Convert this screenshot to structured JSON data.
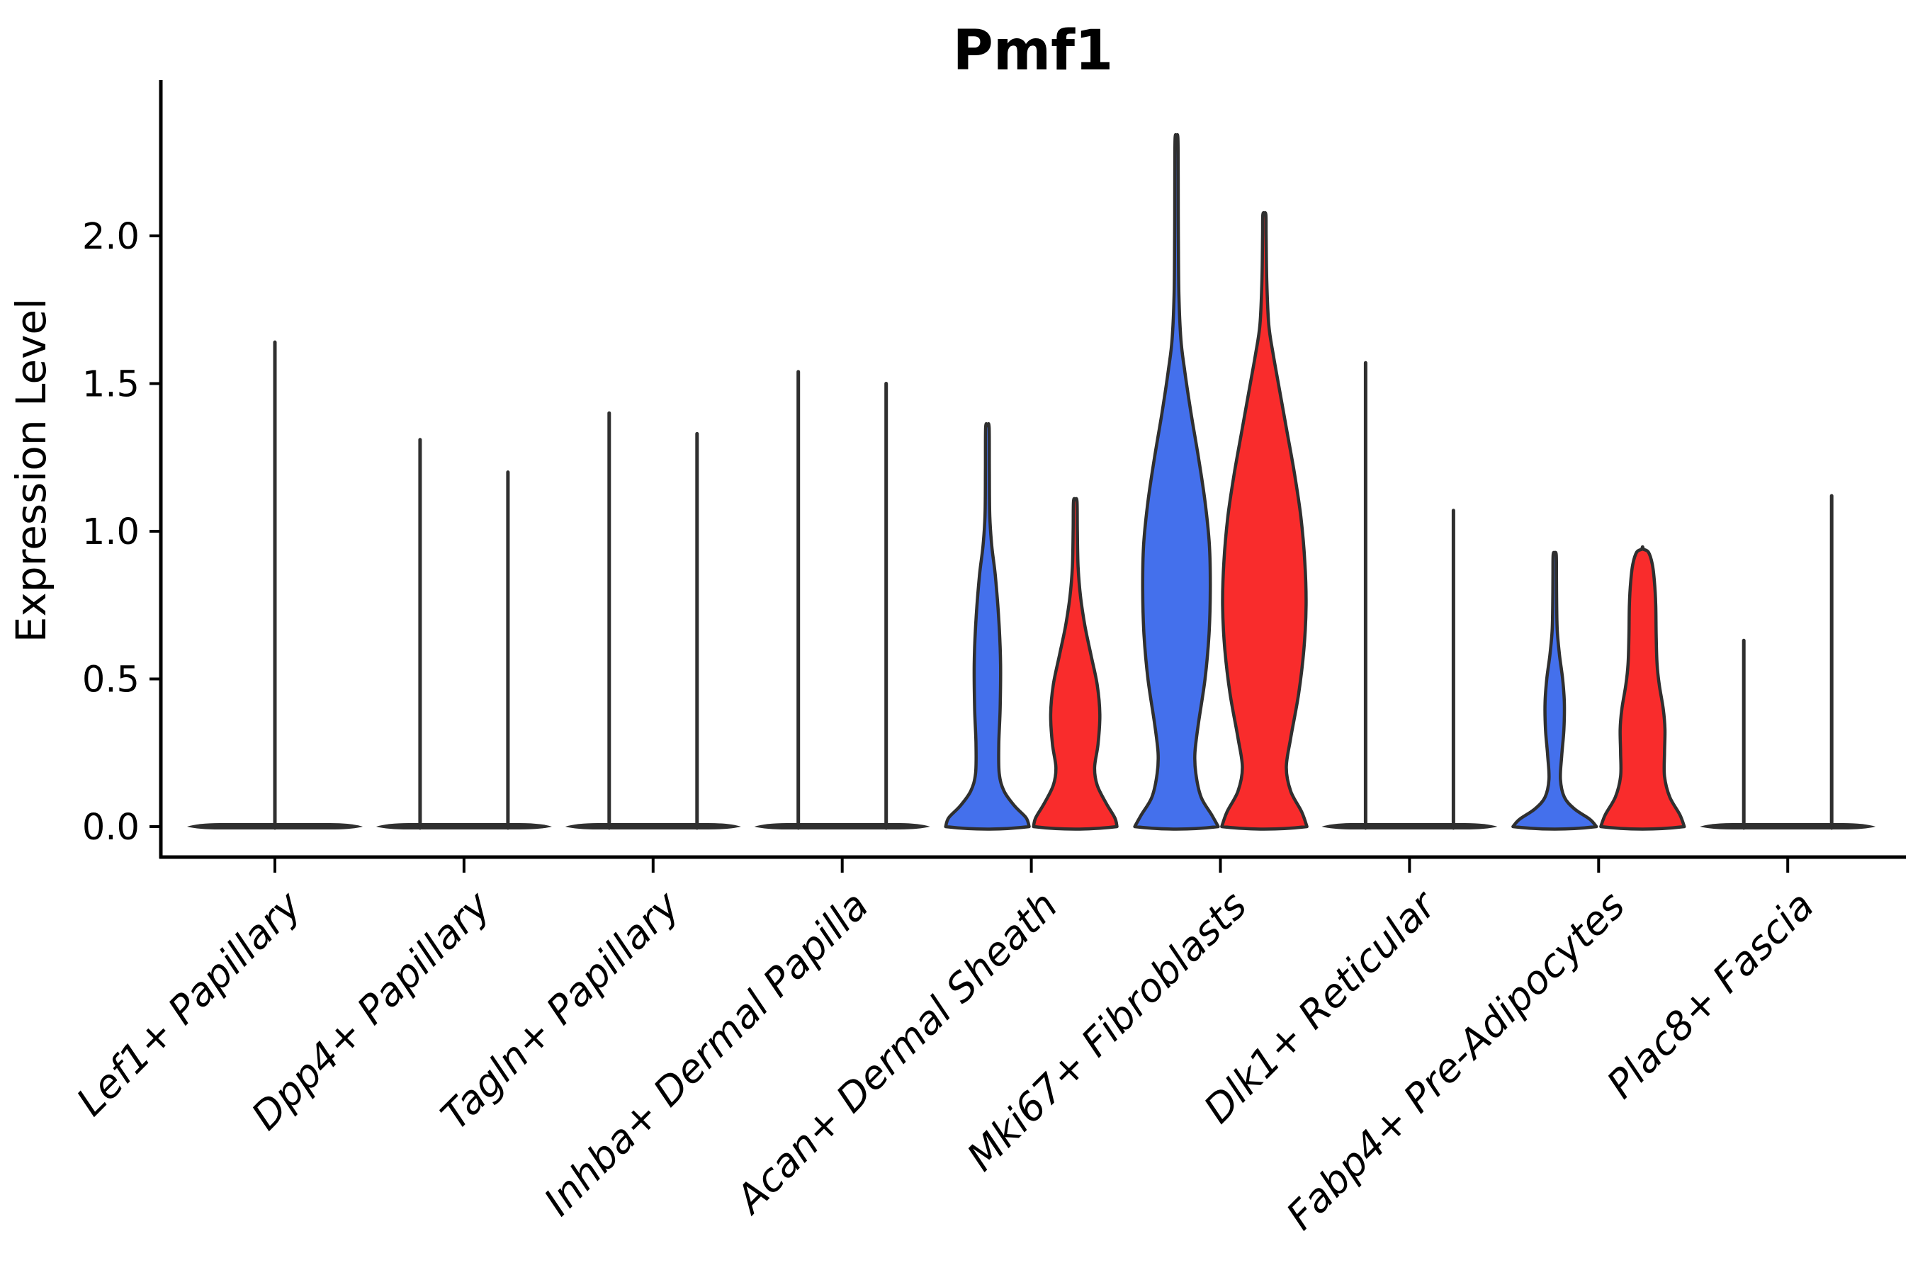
{
  "colors": {
    "background": "#FFFFFF",
    "blue": "#4470EC",
    "red": "#F92C2C",
    "outline": "#2F2F2F",
    "axis": "#000000",
    "text": "#000000"
  },
  "chart_data": {
    "type": "violin",
    "title": "Pmf1",
    "ylabel": "Expression Level",
    "xlabel": "",
    "yticks": [
      "0.0",
      "0.5",
      "1.0",
      "1.5",
      "2.0"
    ],
    "ytick_values": [
      0.0,
      0.5,
      1.0,
      1.5,
      2.0
    ],
    "ylim": [
      -0.07,
      2.45
    ],
    "grid": false,
    "legend": "none",
    "split_palette": [
      "#4470EC",
      "#F92C2C"
    ],
    "categories": [
      {
        "label": "Lef1+ Papillary",
        "violins": [
          {
            "color": "outline",
            "style": "line",
            "span": "full",
            "max": 1.64
          }
        ]
      },
      {
        "label": "Dpp4+ Papillary",
        "violins": [
          {
            "color": "blue",
            "style": "line",
            "span": "half",
            "max": 1.31
          },
          {
            "color": "red",
            "style": "line",
            "span": "half",
            "max": 1.2
          }
        ]
      },
      {
        "label": "Tagln+ Papillary",
        "violins": [
          {
            "color": "blue",
            "style": "line",
            "span": "half",
            "max": 1.4
          },
          {
            "color": "red",
            "style": "line",
            "span": "half",
            "max": 1.33
          }
        ]
      },
      {
        "label": "Inhba+ Dermal Papilla",
        "violins": [
          {
            "color": "blue",
            "style": "line",
            "span": "half",
            "max": 1.54
          },
          {
            "color": "red",
            "style": "line",
            "span": "half",
            "max": 1.5
          }
        ]
      },
      {
        "label": "Acan+ Dermal Sheath",
        "violins": [
          {
            "color": "blue",
            "style": "density",
            "span": "half",
            "max": 1.35,
            "profile": [
              [
                0,
                0.95
              ],
              [
                0.03,
                0.88
              ],
              [
                0.07,
                0.62
              ],
              [
                0.12,
                0.38
              ],
              [
                0.18,
                0.27
              ],
              [
                0.28,
                0.26
              ],
              [
                0.4,
                0.29
              ],
              [
                0.55,
                0.3
              ],
              [
                0.7,
                0.26
              ],
              [
                0.85,
                0.18
              ],
              [
                0.95,
                0.1
              ],
              [
                1.05,
                0.055
              ],
              [
                1.2,
                0.045
              ],
              [
                1.35,
                0.04
              ]
            ]
          },
          {
            "color": "red",
            "style": "density",
            "span": "half",
            "max": 1.1,
            "profile": [
              [
                0,
                0.95
              ],
              [
                0.03,
                0.9
              ],
              [
                0.08,
                0.7
              ],
              [
                0.14,
                0.5
              ],
              [
                0.2,
                0.44
              ],
              [
                0.28,
                0.52
              ],
              [
                0.38,
                0.56
              ],
              [
                0.48,
                0.5
              ],
              [
                0.58,
                0.36
              ],
              [
                0.68,
                0.22
              ],
              [
                0.78,
                0.12
              ],
              [
                0.88,
                0.065
              ],
              [
                1.0,
                0.048
              ],
              [
                1.1,
                0.04
              ]
            ]
          }
        ]
      },
      {
        "label": "Mki67+ Fibroblasts",
        "violins": [
          {
            "color": "blue",
            "style": "density",
            "span": "half",
            "max": 2.33,
            "profile": [
              [
                0,
                0.95
              ],
              [
                0.04,
                0.8
              ],
              [
                0.1,
                0.56
              ],
              [
                0.18,
                0.44
              ],
              [
                0.25,
                0.42
              ],
              [
                0.35,
                0.5
              ],
              [
                0.5,
                0.65
              ],
              [
                0.65,
                0.74
              ],
              [
                0.8,
                0.77
              ],
              [
                0.95,
                0.75
              ],
              [
                1.1,
                0.65
              ],
              [
                1.25,
                0.5
              ],
              [
                1.4,
                0.33
              ],
              [
                1.55,
                0.18
              ],
              [
                1.65,
                0.1
              ],
              [
                1.8,
                0.055
              ],
              [
                2.0,
                0.042
              ],
              [
                2.2,
                0.038
              ],
              [
                2.33,
                0.032
              ]
            ]
          },
          {
            "color": "red",
            "style": "density",
            "span": "half",
            "max": 2.07,
            "profile": [
              [
                0,
                0.97
              ],
              [
                0.05,
                0.85
              ],
              [
                0.12,
                0.6
              ],
              [
                0.2,
                0.5
              ],
              [
                0.3,
                0.6
              ],
              [
                0.45,
                0.78
              ],
              [
                0.6,
                0.9
              ],
              [
                0.75,
                0.95
              ],
              [
                0.9,
                0.92
              ],
              [
                1.05,
                0.83
              ],
              [
                1.2,
                0.68
              ],
              [
                1.35,
                0.5
              ],
              [
                1.5,
                0.32
              ],
              [
                1.6,
                0.2
              ],
              [
                1.7,
                0.1
              ],
              [
                1.85,
                0.055
              ],
              [
                2.0,
                0.04
              ],
              [
                2.07,
                0.035
              ]
            ]
          }
        ]
      },
      {
        "label": "Dlk1+ Reticular",
        "violins": [
          {
            "color": "blue",
            "style": "line",
            "span": "half",
            "max": 1.57
          },
          {
            "color": "red",
            "style": "line",
            "span": "half",
            "max": 1.07
          }
        ]
      },
      {
        "label": "Fabp4+ Pre-Adipocytes",
        "violins": [
          {
            "color": "blue",
            "style": "density",
            "span": "half",
            "max": 0.92,
            "profile": [
              [
                0,
                0.95
              ],
              [
                0.025,
                0.8
              ],
              [
                0.06,
                0.45
              ],
              [
                0.1,
                0.22
              ],
              [
                0.16,
                0.13
              ],
              [
                0.24,
                0.16
              ],
              [
                0.33,
                0.21
              ],
              [
                0.42,
                0.22
              ],
              [
                0.5,
                0.18
              ],
              [
                0.58,
                0.11
              ],
              [
                0.66,
                0.06
              ],
              [
                0.75,
                0.045
              ],
              [
                0.85,
                0.04
              ],
              [
                0.92,
                0.035
              ]
            ]
          },
          {
            "color": "red",
            "style": "density",
            "span": "half",
            "max": 0.94,
            "profile": [
              [
                0,
                0.95
              ],
              [
                0.04,
                0.85
              ],
              [
                0.1,
                0.62
              ],
              [
                0.17,
                0.5
              ],
              [
                0.25,
                0.5
              ],
              [
                0.33,
                0.51
              ],
              [
                0.4,
                0.47
              ],
              [
                0.48,
                0.38
              ],
              [
                0.55,
                0.33
              ],
              [
                0.65,
                0.31
              ],
              [
                0.75,
                0.3
              ],
              [
                0.83,
                0.27
              ],
              [
                0.89,
                0.22
              ],
              [
                0.93,
                0.13
              ],
              [
                0.94,
                0.0
              ]
            ]
          }
        ]
      },
      {
        "label": "Plac8+ Fascia",
        "violins": [
          {
            "color": "blue",
            "style": "line",
            "span": "half",
            "max": 0.63
          },
          {
            "color": "red",
            "style": "line",
            "span": "half",
            "max": 1.12
          }
        ]
      }
    ]
  }
}
